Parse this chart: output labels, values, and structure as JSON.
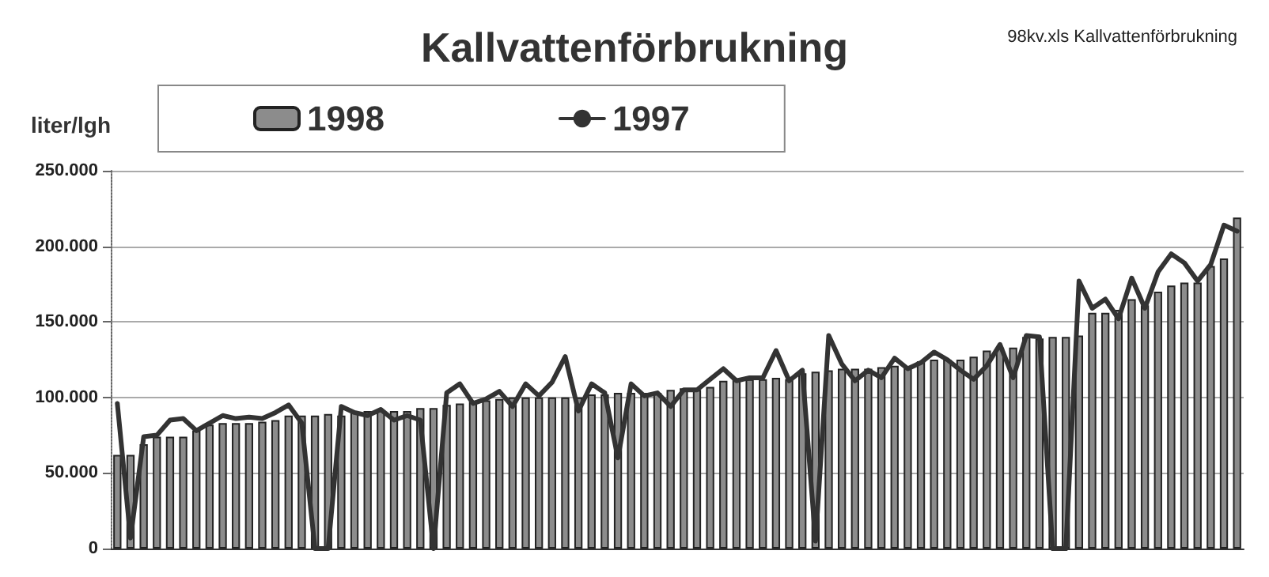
{
  "chart_data": {
    "type": "bar",
    "title": "Kallvattenförbrukning",
    "ylabel": "liter/lgh",
    "annotations": [
      "98kv.xls Kallvattenförbrukning"
    ],
    "categories": [
      null,
      null,
      null,
      null,
      null,
      null,
      null,
      null,
      null,
      null,
      null,
      null,
      null,
      null,
      null,
      null,
      null,
      null,
      null,
      null,
      null,
      null,
      null,
      null,
      null,
      null,
      null,
      null,
      null,
      null,
      null,
      null,
      null,
      null,
      null,
      null,
      null,
      null,
      null,
      null,
      null,
      null,
      null,
      null,
      null,
      null,
      null,
      null,
      null,
      null,
      null,
      null,
      null,
      null,
      null,
      null,
      null,
      null,
      null,
      null,
      null,
      null,
      null,
      null,
      null,
      null,
      null,
      null,
      null,
      null,
      null,
      null,
      null,
      null,
      null,
      null,
      null,
      null,
      null,
      null,
      null,
      null,
      null,
      null,
      null,
      null
    ],
    "series": [
      {
        "name": "1998",
        "color": "#8c8c8c",
        "values": [
          62000,
          62000,
          69000,
          74000,
          74000,
          74000,
          78000,
          82000,
          83000,
          83000,
          83000,
          84000,
          85000,
          88000,
          88000,
          88000,
          89000,
          88000,
          90000,
          91000,
          91000,
          91000,
          91000,
          93000,
          93000,
          95000,
          96000,
          97000,
          98000,
          99000,
          100000,
          100000,
          100000,
          100000,
          100000,
          100000,
          102000,
          102000,
          103000,
          103000,
          103000,
          103000,
          105000,
          106000,
          105000,
          107000,
          111000,
          112000,
          112000,
          112000,
          113000,
          112000,
          116000,
          117000,
          118000,
          119000,
          119000,
          119000,
          120000,
          121000,
          120000,
          124000,
          125000,
          125000,
          125000,
          127000,
          131000,
          133000,
          133000,
          140000,
          139000,
          140000,
          140000,
          141000,
          156000,
          156000,
          158000,
          165000,
          161000,
          170000,
          174000,
          176000,
          176000,
          187000,
          192000,
          219000
        ]
      },
      {
        "name": "1997",
        "type": "line",
        "color": "#333333",
        "values": [
          96000,
          7000,
          74000,
          75000,
          85000,
          86000,
          78000,
          83000,
          88000,
          86000,
          87000,
          86000,
          90000,
          95000,
          83000,
          0,
          0,
          94000,
          90000,
          88000,
          92000,
          85000,
          88000,
          85000,
          0,
          103000,
          109000,
          96000,
          99000,
          104000,
          94000,
          109000,
          101000,
          110000,
          127000,
          91000,
          109000,
          103000,
          60000,
          109000,
          101000,
          103000,
          94000,
          105000,
          105000,
          112000,
          119000,
          111000,
          113000,
          113000,
          131000,
          111000,
          118000,
          5000,
          141000,
          122000,
          111000,
          118000,
          113000,
          126000,
          119000,
          123000,
          130000,
          125000,
          118000,
          112000,
          121000,
          135000,
          113000,
          141000,
          140000,
          0,
          0,
          177000,
          159000,
          165000,
          152000,
          179000,
          159000,
          183000,
          195000,
          189000,
          177000,
          188000,
          214000,
          210000
        ]
      }
    ],
    "ylim": [
      0,
      250000
    ],
    "yticks": [
      {
        "value": 0,
        "label": "0"
      },
      {
        "value": 50000,
        "label": "50.000"
      },
      {
        "value": 100000,
        "label": "100.000"
      },
      {
        "value": 150000,
        "label": "150.000"
      },
      {
        "value": 200000,
        "label": "200.000"
      },
      {
        "value": 250000,
        "label": "250.000"
      }
    ],
    "grid": "y",
    "legend": "top",
    "marker": "none",
    "line_style": "solid"
  }
}
